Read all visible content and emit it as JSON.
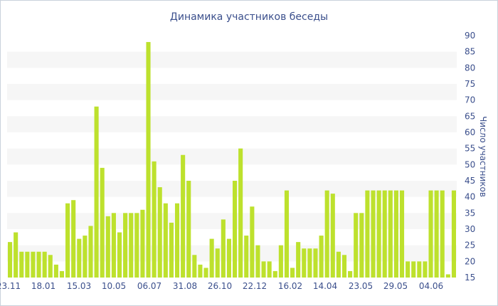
{
  "chart_data": {
    "type": "bar",
    "title": "Динамика участников беседы",
    "ylabel": "Число участников",
    "xlabel": "",
    "ylim": [
      15,
      90
    ],
    "y_ticks": [
      15,
      20,
      25,
      30,
      35,
      40,
      45,
      50,
      55,
      60,
      65,
      70,
      75,
      80,
      85,
      90
    ],
    "y_axis_side": "right",
    "grid": "alternating horizontal bands",
    "legend": "none",
    "x_tick_labels": [
      "23.11",
      "18.01",
      "15.03",
      "10.05",
      "06.07",
      "31.08",
      "26.10",
      "22.12",
      "16.02",
      "14.04",
      "23.05",
      "29.05",
      "04.06"
    ],
    "bar_color": "#bde12d",
    "band_color": "#f6f6f6",
    "values": [
      26,
      29,
      23,
      23,
      23,
      23,
      23,
      22,
      19,
      17,
      38,
      39,
      27,
      28,
      31,
      68,
      49,
      34,
      35,
      29,
      35,
      35,
      35,
      36,
      88,
      51,
      43,
      38,
      32,
      38,
      53,
      45,
      22,
      19,
      18,
      27,
      24,
      33,
      27,
      45,
      55,
      28,
      37,
      25,
      20,
      20,
      17,
      25,
      42,
      18,
      26,
      24,
      24,
      24,
      28,
      42,
      41,
      23,
      22,
      17,
      35,
      35,
      42,
      42,
      42,
      42,
      42,
      42,
      42,
      20,
      20,
      20,
      20,
      42,
      42,
      42,
      16,
      42
    ]
  }
}
